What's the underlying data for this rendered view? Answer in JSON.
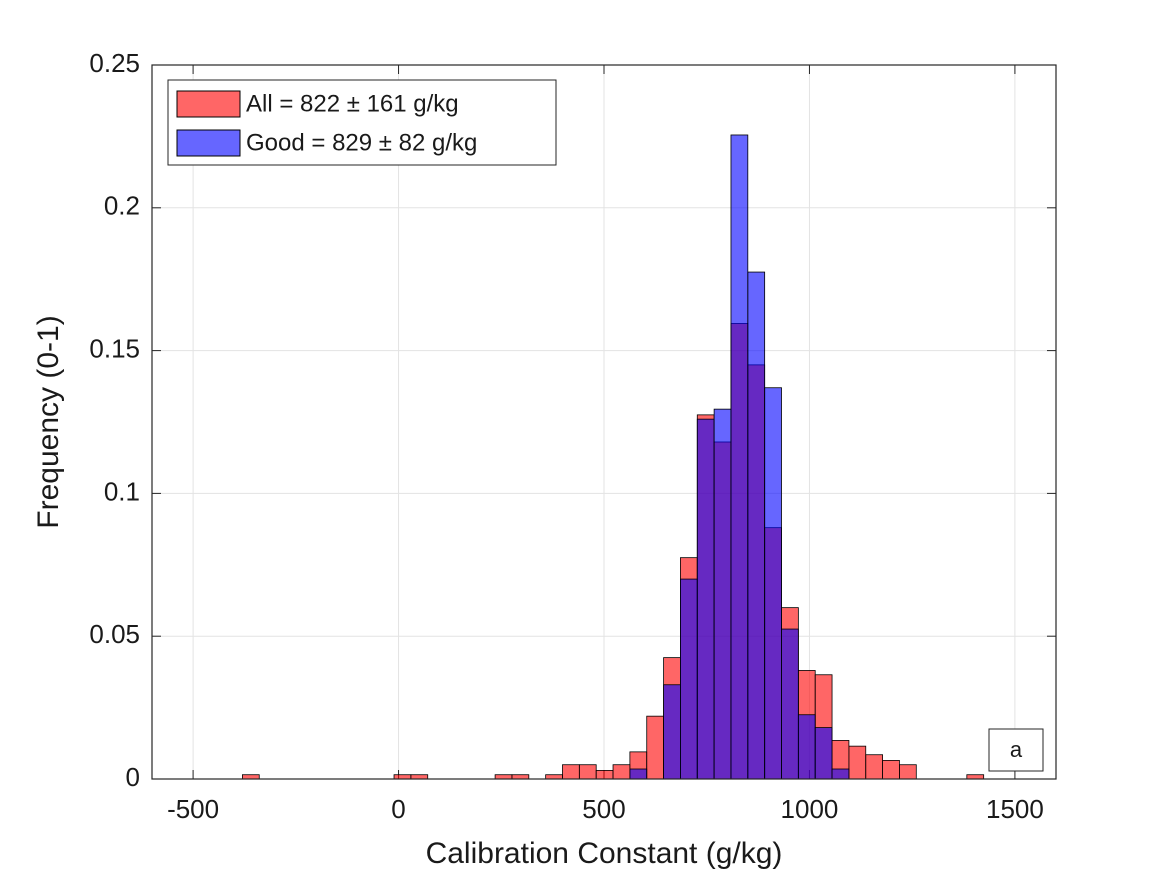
{
  "chart_data": {
    "type": "histogram",
    "xlabel": "Calibration Constant (g/kg)",
    "ylabel": "Frequency (0-1)",
    "annotation": "a",
    "bins": [
      -380,
      -339,
      -298,
      -257,
      -216,
      -175,
      -134,
      -93,
      -52,
      -11,
      30,
      71,
      112,
      153,
      194,
      235,
      276,
      317,
      358,
      399,
      440,
      481,
      522,
      563,
      604,
      645,
      686,
      727,
      768,
      809,
      850,
      891,
      932,
      973,
      1014,
      1055,
      1096,
      1137,
      1178,
      1219,
      1260,
      1301,
      1342,
      1383,
      1424
    ],
    "series": [
      {
        "name": "All = 822 ± 161 g/kg",
        "color": "#ff0000",
        "values": [
          0.0015,
          0,
          0,
          0,
          0,
          0,
          0,
          0,
          0,
          0.0015,
          0.0015,
          0,
          0,
          0,
          0,
          0.0015,
          0.0015,
          0,
          0.0015,
          0.005,
          0.005,
          0.003,
          0.005,
          0.0095,
          0.022,
          0.0425,
          0.0775,
          0.1275,
          0.118,
          0.1595,
          0.145,
          0.088,
          0.06,
          0.038,
          0.0365,
          0.0135,
          0.0115,
          0.0085,
          0.0065,
          0.005,
          0,
          0,
          0,
          0.0015
        ]
      },
      {
        "name": "Good = 829 ± 82 g/kg",
        "color": "#0000ff",
        "values": [
          0,
          0,
          0,
          0,
          0,
          0,
          0,
          0,
          0,
          0,
          0,
          0,
          0,
          0,
          0,
          0,
          0,
          0,
          0,
          0,
          0,
          0,
          0,
          0.0035,
          0,
          0.033,
          0.07,
          0.126,
          0.1295,
          0.2255,
          0.1775,
          0.137,
          0.0525,
          0.0225,
          0.018,
          0.0035,
          0,
          0,
          0,
          0,
          0,
          0,
          0,
          0
        ]
      }
    ],
    "xlim": [
      -600,
      1600
    ],
    "ylim": [
      0,
      0.25
    ],
    "xticks": [
      -500,
      0,
      500,
      1000,
      1500
    ],
    "yticks": [
      0,
      0.05,
      0.1,
      0.15,
      0.2,
      0.25
    ],
    "grid": true,
    "legend": "upper-left",
    "opacity": 0.6
  }
}
